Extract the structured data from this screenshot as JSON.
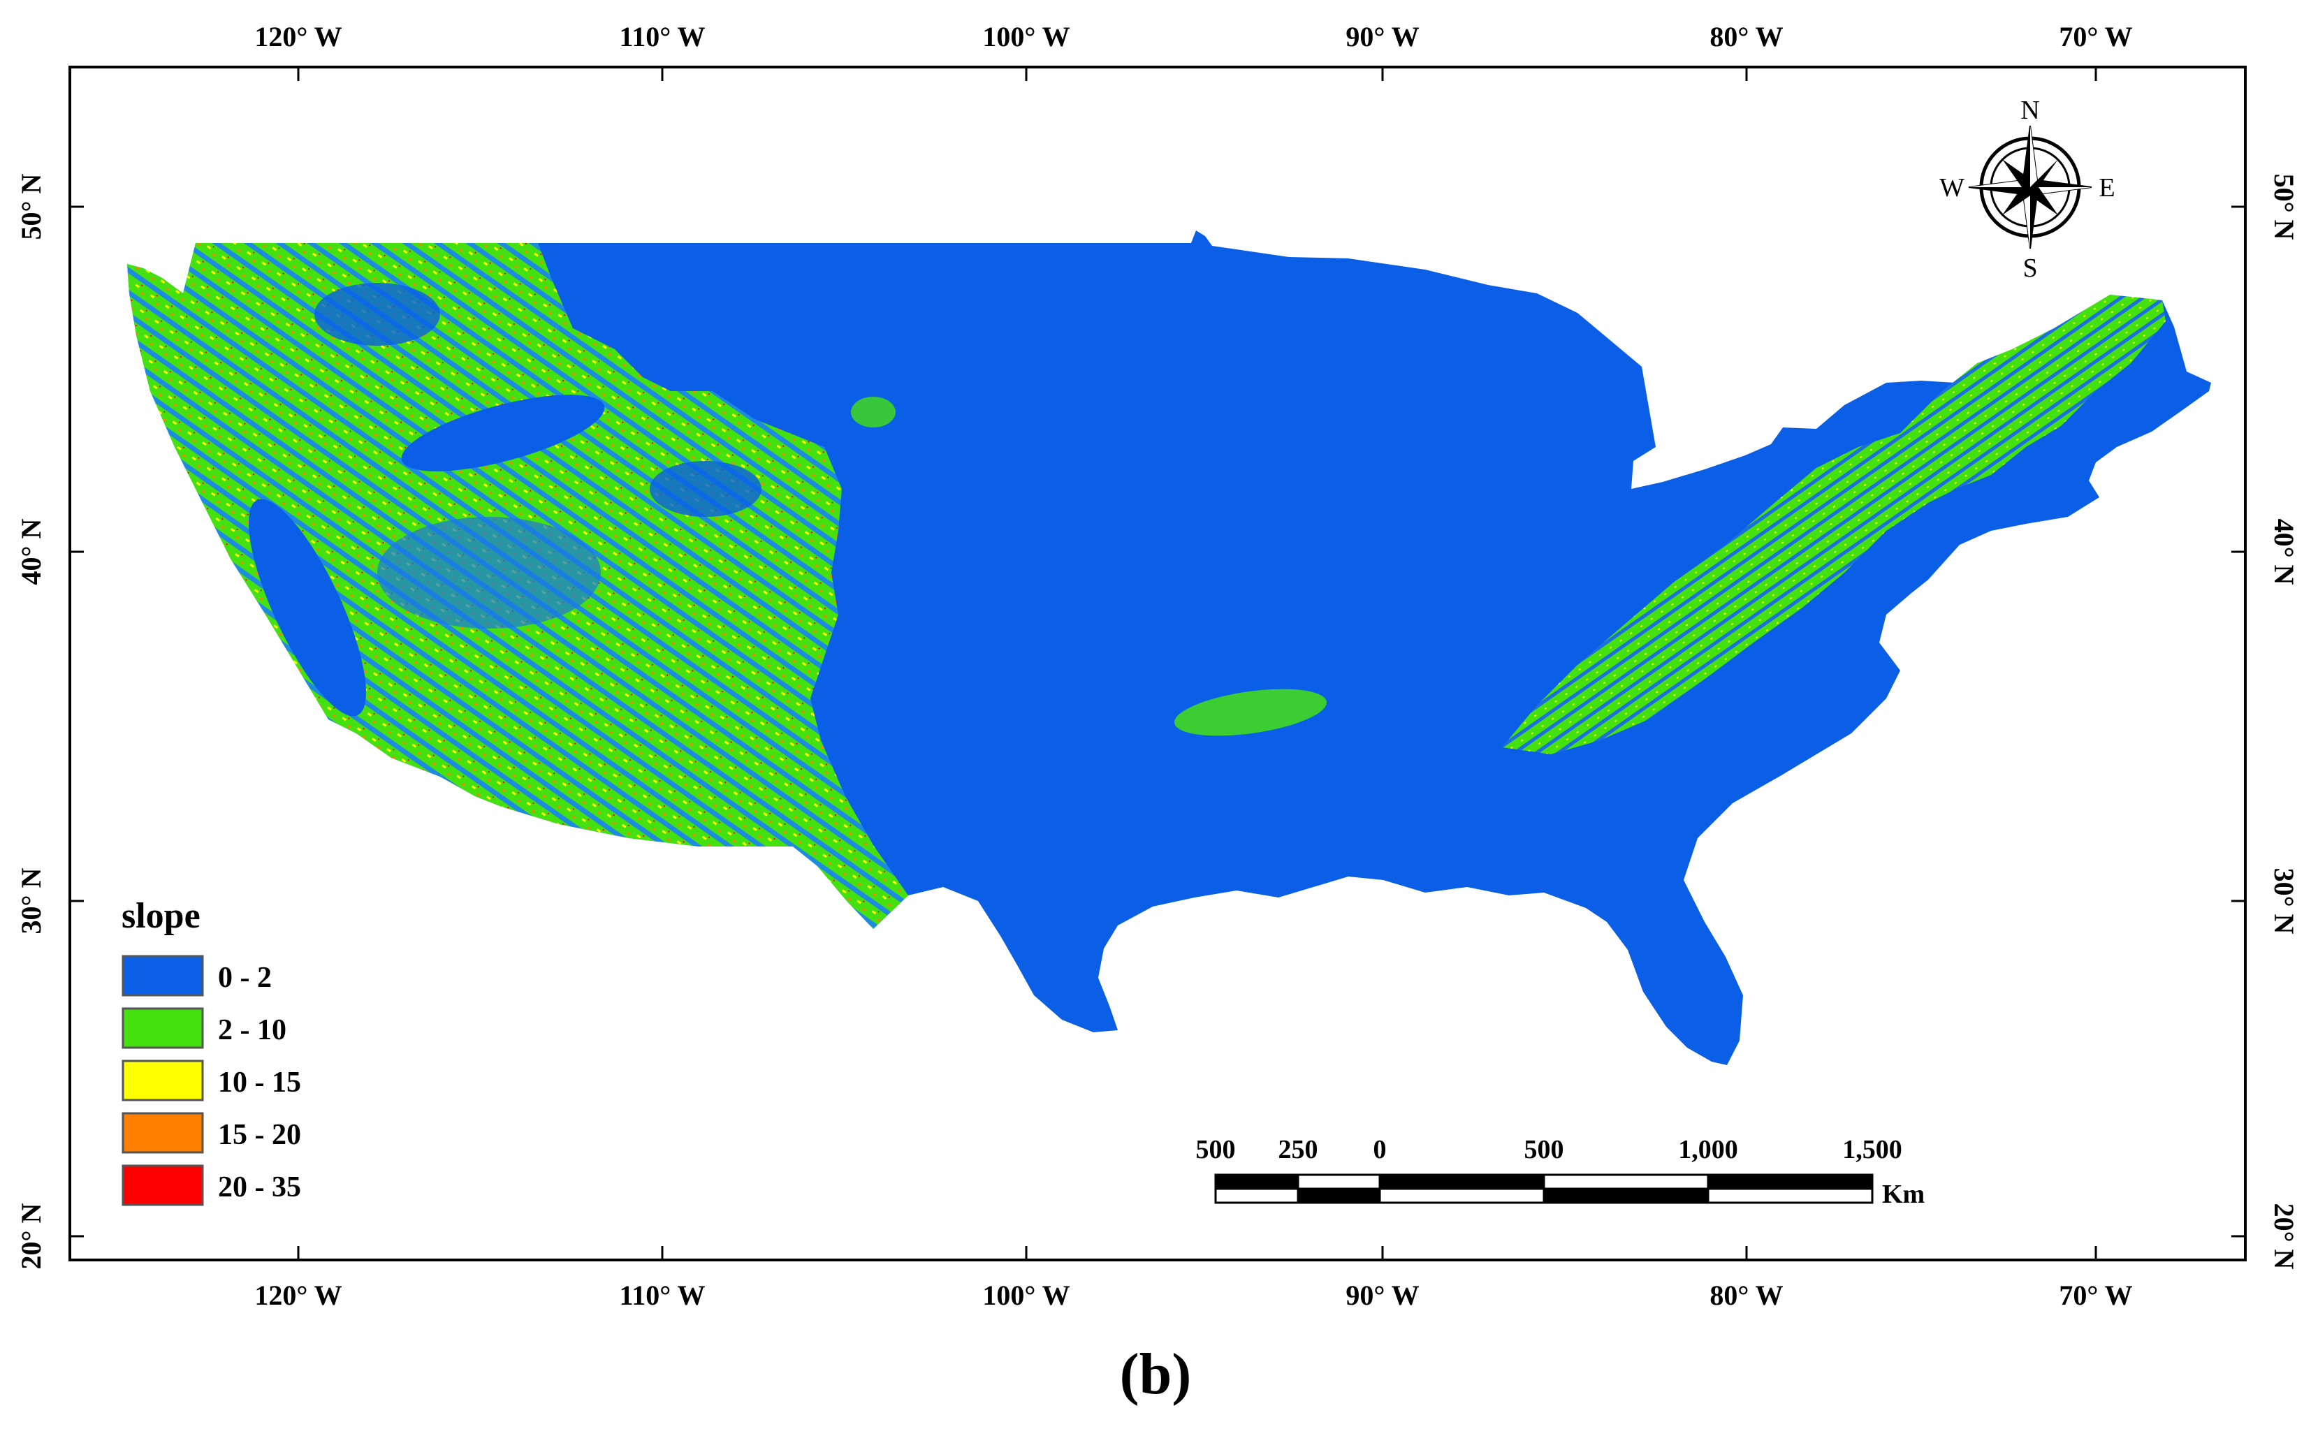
{
  "map": {
    "axes": {
      "longitude_labels": [
        "120° W",
        "110° W",
        "100° W",
        "90° W",
        "80° W",
        "70° W"
      ],
      "latitude_labels": [
        "50° N",
        "40° N",
        "30° N",
        "20° N"
      ]
    },
    "legend": {
      "title": "slope",
      "items": [
        {
          "label": "0 - 2",
          "color": "#0a5fe6"
        },
        {
          "label": "2 - 10",
          "color": "#44e010"
        },
        {
          "label": "10 - 15",
          "color": "#ffff00"
        },
        {
          "label": "15 - 20",
          "color": "#ff8000"
        },
        {
          "label": "20 - 35",
          "color": "#ff0000"
        }
      ]
    },
    "scale_bar": {
      "labels": [
        "500",
        "250",
        "0",
        "500",
        "1,000",
        "1,500"
      ],
      "unit": "Km"
    },
    "compass": {
      "n": "N",
      "s": "S",
      "e": "E",
      "w": "W"
    },
    "panel_label": "(b)",
    "colors": {
      "low_slope": "#0a5fe6",
      "moderate_slope": "#44e010",
      "steep_slope": "#ff0000"
    }
  }
}
